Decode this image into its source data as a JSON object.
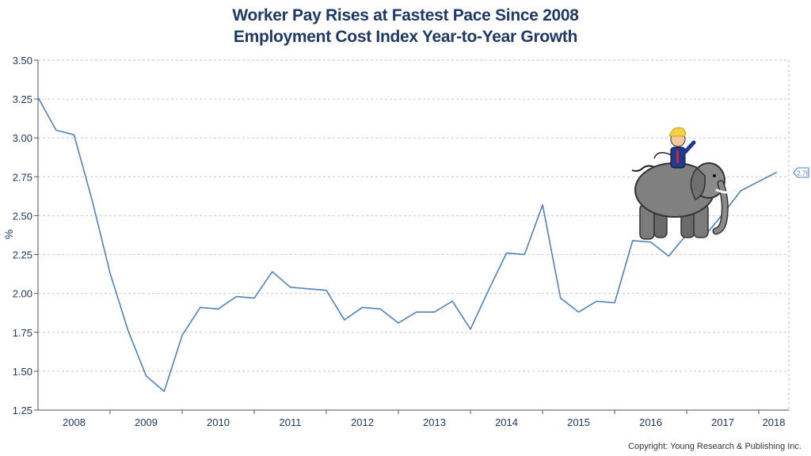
{
  "title": "Worker Pay Rises at Fastest Pace Since 2008",
  "subtitle": "Employment Cost Index Year-to-Year Growth",
  "copyright": "Copyright: Young Research & Publishing Inc.",
  "colors": {
    "line": "#4f81bd",
    "text": "#1f3864",
    "grid": "#c8c8c8"
  },
  "chart_data": {
    "type": "line",
    "title": "Worker Pay Rises at Fastest Pace Since 2008",
    "subtitle": "Employment Cost Index Year-to-Year Growth",
    "xlabel": "",
    "ylabel": "%",
    "ylim": [
      1.25,
      3.5
    ],
    "yticks": [
      1.25,
      1.5,
      1.75,
      2.0,
      2.25,
      2.5,
      2.75,
      3.0,
      3.25,
      3.5
    ],
    "ytick_labels": [
      "1.25",
      "1.50",
      "1.75",
      "2.00",
      "2.25",
      "2.50",
      "2.75",
      "3.00",
      "3.25",
      "3.50"
    ],
    "xlim": [
      "2008-01",
      "2018-06"
    ],
    "year_labels": [
      "2008",
      "2009",
      "2010",
      "2011",
      "2012",
      "2013",
      "2014",
      "2015",
      "2016",
      "2017",
      "2018"
    ],
    "grid": true,
    "last_value_label": "2.78",
    "series": [
      {
        "x": [
          "2008-01",
          "2008-04",
          "2008-07",
          "2008-10",
          "2009-01",
          "2009-04",
          "2009-07",
          "2009-10",
          "2010-01",
          "2010-04",
          "2010-07",
          "2010-10",
          "2011-01",
          "2011-04",
          "2011-07",
          "2011-10",
          "2012-01",
          "2012-04",
          "2012-07",
          "2012-10",
          "2013-01",
          "2013-04",
          "2013-07",
          "2013-10",
          "2014-01",
          "2014-04",
          "2014-07",
          "2014-10",
          "2015-01",
          "2015-04",
          "2015-07",
          "2015-10",
          "2016-01",
          "2016-04",
          "2016-07",
          "2016-10",
          "2017-01",
          "2017-04",
          "2017-07",
          "2017-10",
          "2018-01",
          "2018-04"
        ],
        "values": [
          3.26,
          3.05,
          3.02,
          2.6,
          2.13,
          1.76,
          1.47,
          1.37,
          1.73,
          1.91,
          1.9,
          1.98,
          1.97,
          2.14,
          2.04,
          2.03,
          2.02,
          1.83,
          1.91,
          1.9,
          1.81,
          1.88,
          1.88,
          1.95,
          1.77,
          2.02,
          2.26,
          2.25,
          2.57,
          1.97,
          1.88,
          1.95,
          1.94,
          2.34,
          2.33,
          2.24,
          2.38,
          2.37,
          2.51,
          2.66,
          2.72,
          2.78
        ]
      }
    ]
  }
}
